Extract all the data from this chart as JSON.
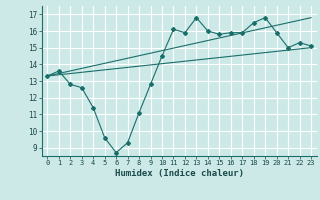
{
  "xlabel": "Humidex (Indice chaleur)",
  "ylabel": "",
  "background_color": "#cce9e8",
  "grid_color": "#ffffff",
  "line_color": "#1a6e6a",
  "xlim": [
    -0.5,
    23.5
  ],
  "ylim": [
    8.5,
    17.5
  ],
  "xticks": [
    0,
    1,
    2,
    3,
    4,
    5,
    6,
    7,
    8,
    9,
    10,
    11,
    12,
    13,
    14,
    15,
    16,
    17,
    18,
    19,
    20,
    21,
    22,
    23
  ],
  "yticks": [
    9,
    10,
    11,
    12,
    13,
    14,
    15,
    16,
    17
  ],
  "line1_x": [
    0,
    1,
    2,
    3,
    4,
    5,
    6,
    7,
    8,
    9,
    10,
    11,
    12,
    13,
    14,
    15,
    16,
    17,
    18,
    19,
    20,
    21,
    22,
    23
  ],
  "line1_y": [
    13.3,
    13.6,
    12.8,
    12.6,
    11.4,
    9.6,
    8.7,
    9.3,
    11.1,
    12.8,
    14.5,
    16.1,
    15.9,
    16.8,
    16.0,
    15.8,
    15.9,
    15.9,
    16.5,
    16.8,
    15.9,
    15.0,
    15.3,
    15.1
  ],
  "line2_x": [
    0,
    23
  ],
  "line2_y": [
    13.3,
    16.8
  ],
  "line3_x": [
    0,
    23
  ],
  "line3_y": [
    13.3,
    15.0
  ]
}
